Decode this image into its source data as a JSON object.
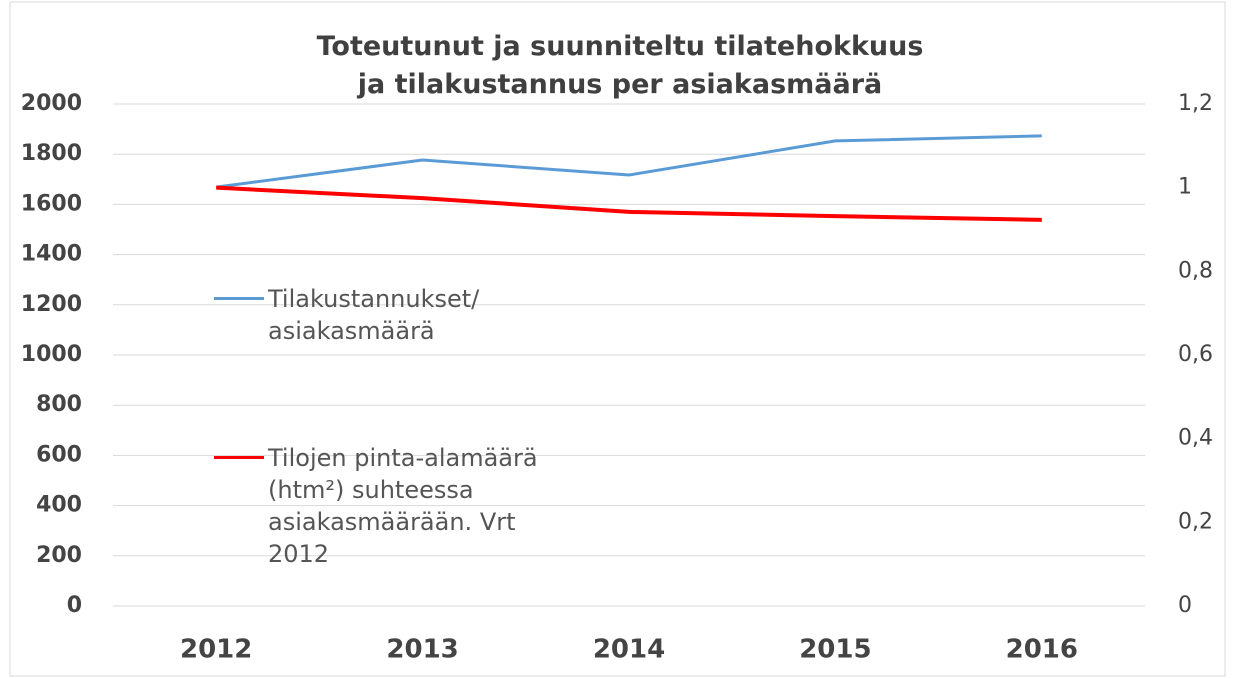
{
  "chart_data": {
    "type": "line",
    "title": "Toteutunut ja suunniteltu tilatehokkuus ja tilakustannus per asiakasmäärä",
    "categories": [
      "2012",
      "2013",
      "2014",
      "2015",
      "2016"
    ],
    "series": [
      {
        "name": "Tilakustannukset/ asiakasmäärä",
        "color": "#5b9bd5",
        "values": [
          1669,
          1777,
          1717,
          1853,
          1873
        ]
      },
      {
        "name": "Tilojen pinta-alamäärä (htm²) suhteessa asiakasmäärään. Vrt 2012",
        "color": "#ff0000",
        "axis": "y2",
        "values": [
          1.0,
          0.975,
          0.942,
          0.932,
          0.923
        ]
      }
    ],
    "ylim": [
      0,
      2000
    ],
    "yticks": [
      0,
      200,
      400,
      600,
      800,
      1000,
      1200,
      1400,
      1600,
      1800,
      2000
    ],
    "y2lim": [
      0,
      1.2
    ],
    "y2ticks": [
      0,
      {
        "value": 0.2,
        "label": "0,2"
      },
      {
        "value": 0.4,
        "label": "0,4"
      },
      {
        "value": 0.6,
        "label": "0,6"
      },
      {
        "value": 0.8,
        "label": "0,8"
      },
      1,
      {
        "value": 1.2,
        "label": "1,2"
      }
    ],
    "grid": true,
    "legend": "left"
  }
}
